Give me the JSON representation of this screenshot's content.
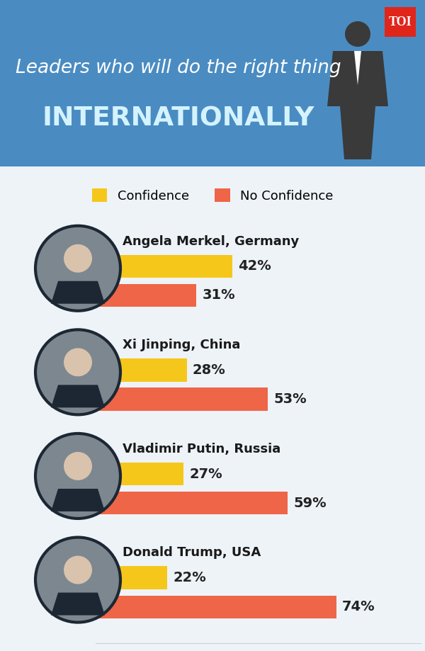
{
  "chart_data": {
    "type": "bar",
    "orientation": "horizontal",
    "title": "Leaders who will do the right thing",
    "subtitle": "INTERNATIONALLY",
    "annotations": [
      "TOI"
    ],
    "categories": [
      "Angela Merkel, Germany",
      "Xi Jinping, China",
      "Vladimir Putin, Russia",
      "Donald Trump, USA"
    ],
    "series": [
      {
        "name": "Confidence",
        "color": "#f5c71a",
        "values": [
          42,
          28,
          27,
          22
        ],
        "value_labels": [
          "42%",
          "28%",
          "27%",
          "22%"
        ]
      },
      {
        "name": "No Confidence",
        "color": "#ef6548",
        "values": [
          31,
          53,
          59,
          74
        ],
        "value_labels": [
          "31%",
          "53%",
          "59%",
          "74%"
        ]
      }
    ],
    "xlim": [
      0,
      100
    ],
    "xticks": [],
    "data_labels": true,
    "tick_labels": false,
    "legend": "upper center",
    "grid": false
  }
}
